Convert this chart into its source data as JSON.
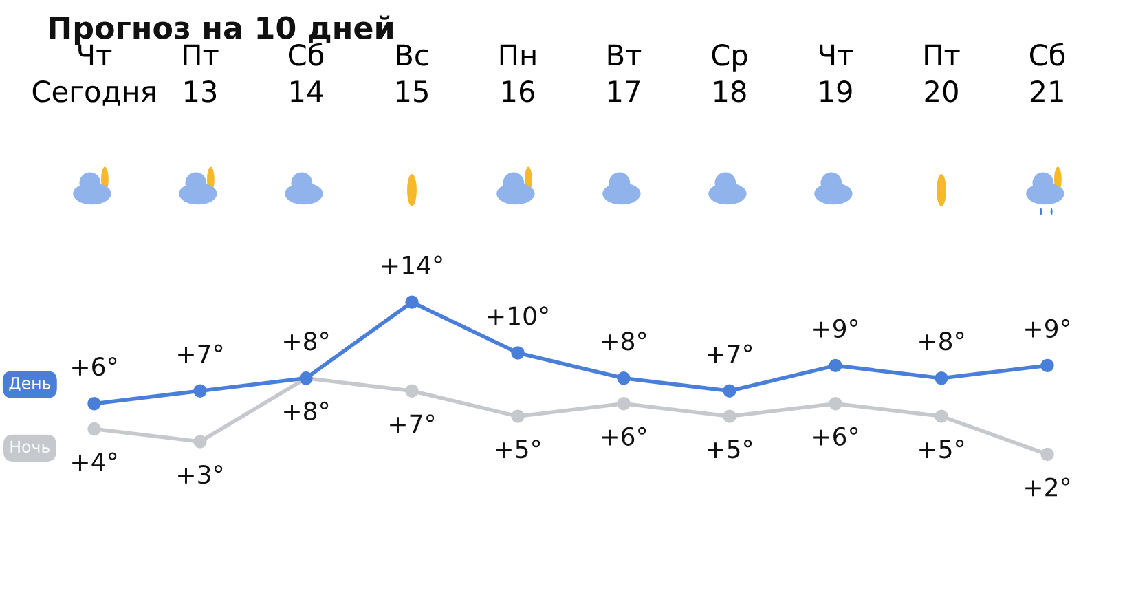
{
  "chart_data": {
    "type": "line",
    "title": "Прогноз на 10 дней",
    "categories": [
      "Чт\nСегодня",
      "Пт\n13",
      "Сб\n14",
      "Вс\n15",
      "Пн\n16",
      "Вт\n17",
      "Ср\n18",
      "Чт\n19",
      "Пт\n20",
      "Сб\n21"
    ],
    "series": [
      {
        "name": "День",
        "color": "#4a7fd9",
        "values": [
          6,
          7,
          8,
          14,
          10,
          8,
          7,
          9,
          8,
          9
        ],
        "value_labels": [
          "+6°",
          "+7°",
          "+8°",
          "+14°",
          "+10°",
          "+8°",
          "+7°",
          "+9°",
          "+8°",
          "+9°"
        ]
      },
      {
        "name": "Ночь",
        "color": "#c5c8cc",
        "values": [
          4,
          3,
          8,
          7,
          5,
          6,
          5,
          6,
          5,
          2
        ],
        "value_labels": [
          "+4°",
          "+3°",
          "+8°",
          "+7°",
          "+5°",
          "+6°",
          "+5°",
          "+6°",
          "+5°",
          "+2°"
        ]
      }
    ],
    "tick_labels": "x",
    "grid": false,
    "legend": "left",
    "marker": "circle",
    "line_style": "solid"
  }
}
